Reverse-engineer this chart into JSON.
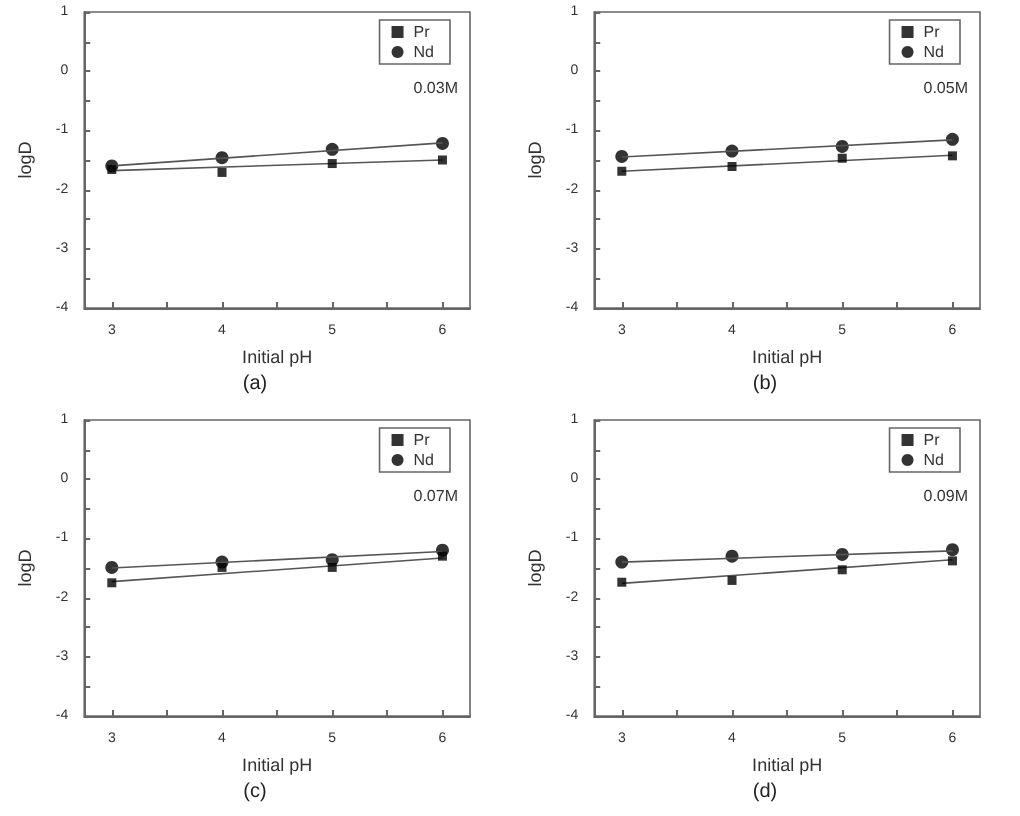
{
  "chart_data": [
    {
      "type": "scatter",
      "title": "(a)",
      "xlabel": "Initial pH",
      "ylabel": "logD",
      "annotations": [
        "0.03M"
      ],
      "xlim": [
        2.75,
        6.25
      ],
      "xticks": [
        3,
        {
          "value": 3.5,
          "label": null
        },
        4,
        {
          "value": 4.5,
          "label": null
        },
        5,
        {
          "value": 5.5,
          "label": null
        },
        6
      ],
      "ylim": [
        -4,
        1
      ],
      "yticks": [
        -4,
        {
          "value": -3.5,
          "label": null
        },
        -3,
        {
          "value": -2.5,
          "label": null
        },
        -2,
        {
          "value": -1.5,
          "label": null
        },
        -1,
        {
          "value": -0.5,
          "label": null
        },
        0,
        {
          "value": 0.5,
          "label": null
        },
        1
      ],
      "grid": false,
      "legend": "top right",
      "series": [
        {
          "name": "Pr",
          "color": "#000000",
          "marker": "square",
          "x": [
            3,
            4,
            5,
            6
          ],
          "values": [
            -1.66,
            -1.71,
            -1.56,
            -1.5
          ]
        },
        {
          "name": "Nd",
          "color": "#000000",
          "marker": "circle",
          "x": [
            3,
            4,
            5,
            6
          ],
          "values": [
            -1.6,
            -1.46,
            -1.32,
            -1.22
          ]
        },
        {
          "type": "line",
          "color": "#555555",
          "marker": "none",
          "x": [
            3,
            6
          ],
          "values": [
            -1.68,
            -1.5
          ]
        },
        {
          "type": "line",
          "color": "#555555",
          "marker": "none",
          "x": [
            3,
            6
          ],
          "values": [
            -1.6,
            -1.21
          ]
        }
      ]
    },
    {
      "type": "scatter",
      "title": "(b)",
      "xlabel": "Initial pH",
      "ylabel": "logD",
      "annotations": [
        "0.05M"
      ],
      "xlim": [
        2.75,
        6.25
      ],
      "xticks": [
        3,
        {
          "value": 3.5,
          "label": null
        },
        4,
        {
          "value": 4.5,
          "label": null
        },
        5,
        {
          "value": 5.5,
          "label": null
        },
        6
      ],
      "ylim": [
        -4,
        1
      ],
      "yticks": [
        -4,
        {
          "value": -3.5,
          "label": null
        },
        -3,
        {
          "value": -2.5,
          "label": null
        },
        -2,
        {
          "value": -1.5,
          "label": null
        },
        -1,
        {
          "value": -0.5,
          "label": null
        },
        0,
        {
          "value": 0.5,
          "label": null
        },
        1
      ],
      "grid": false,
      "legend": "top right",
      "series": [
        {
          "name": "Pr",
          "color": "#000000",
          "marker": "square",
          "x": [
            3,
            4,
            5,
            6
          ],
          "values": [
            -1.69,
            -1.61,
            -1.47,
            -1.43
          ]
        },
        {
          "name": "Nd",
          "color": "#000000",
          "marker": "circle",
          "x": [
            3,
            4,
            5,
            6
          ],
          "values": [
            -1.44,
            -1.35,
            -1.27,
            -1.15
          ]
        },
        {
          "type": "line",
          "color": "#555555",
          "marker": "none",
          "x": [
            3,
            6
          ],
          "values": [
            -1.69,
            -1.42
          ]
        },
        {
          "type": "line",
          "color": "#555555",
          "marker": "none",
          "x": [
            3,
            6
          ],
          "values": [
            -1.45,
            -1.16
          ]
        }
      ]
    },
    {
      "type": "scatter",
      "title": "(c)",
      "xlabel": "Initial pH",
      "ylabel": "logD",
      "annotations": [
        "0.07M"
      ],
      "xlim": [
        2.75,
        6.25
      ],
      "xticks": [
        3,
        {
          "value": 3.5,
          "label": null
        },
        4,
        {
          "value": 4.5,
          "label": null
        },
        5,
        {
          "value": 5.5,
          "label": null
        },
        6
      ],
      "ylim": [
        -4,
        1
      ],
      "yticks": [
        -4,
        {
          "value": -3.5,
          "label": null
        },
        -3,
        {
          "value": -2.5,
          "label": null
        },
        -2,
        {
          "value": -1.5,
          "label": null
        },
        -1,
        {
          "value": -0.5,
          "label": null
        },
        0,
        {
          "value": 0.5,
          "label": null
        },
        1
      ],
      "grid": false,
      "legend": "top right",
      "series": [
        {
          "name": "Pr",
          "color": "#000000",
          "marker": "square",
          "x": [
            3,
            4,
            5,
            6
          ],
          "values": [
            -1.75,
            -1.49,
            -1.49,
            -1.3
          ]
        },
        {
          "name": "Nd",
          "color": "#000000",
          "marker": "circle",
          "x": [
            3,
            4,
            5,
            6
          ],
          "values": [
            -1.49,
            -1.4,
            -1.36,
            -1.2
          ]
        },
        {
          "type": "line",
          "color": "#555555",
          "marker": "none",
          "x": [
            3,
            6
          ],
          "values": [
            -1.73,
            -1.33
          ]
        },
        {
          "type": "line",
          "color": "#555555",
          "marker": "none",
          "x": [
            3,
            6
          ],
          "values": [
            -1.5,
            -1.22
          ]
        }
      ]
    },
    {
      "type": "scatter",
      "title": "(d)",
      "xlabel": "Initial pH",
      "ylabel": "logD",
      "annotations": [
        "0.09M"
      ],
      "xlim": [
        2.75,
        6.25
      ],
      "xticks": [
        3,
        {
          "value": 3.5,
          "label": null
        },
        4,
        {
          "value": 4.5,
          "label": null
        },
        5,
        {
          "value": 5.5,
          "label": null
        },
        6
      ],
      "ylim": [
        -4,
        1
      ],
      "yticks": [
        -4,
        {
          "value": -3.5,
          "label": null
        },
        -3,
        {
          "value": -2.5,
          "label": null
        },
        -2,
        {
          "value": -1.5,
          "label": null
        },
        -1,
        {
          "value": -0.5,
          "label": null
        },
        0,
        {
          "value": 0.5,
          "label": null
        },
        1
      ],
      "grid": false,
      "legend": "top right",
      "series": [
        {
          "name": "Pr",
          "color": "#000000",
          "marker": "square",
          "x": [
            3,
            4,
            5,
            6
          ],
          "values": [
            -1.74,
            -1.71,
            -1.53,
            -1.38
          ]
        },
        {
          "name": "Nd",
          "color": "#000000",
          "marker": "circle",
          "x": [
            3,
            4,
            5,
            6
          ],
          "values": [
            -1.4,
            -1.3,
            -1.27,
            -1.19
          ]
        },
        {
          "type": "line",
          "color": "#555555",
          "marker": "none",
          "x": [
            3,
            6
          ],
          "values": [
            -1.76,
            -1.36
          ]
        },
        {
          "type": "line",
          "color": "#555555",
          "marker": "none",
          "x": [
            3,
            6
          ],
          "values": [
            -1.4,
            -1.21
          ]
        }
      ]
    }
  ]
}
